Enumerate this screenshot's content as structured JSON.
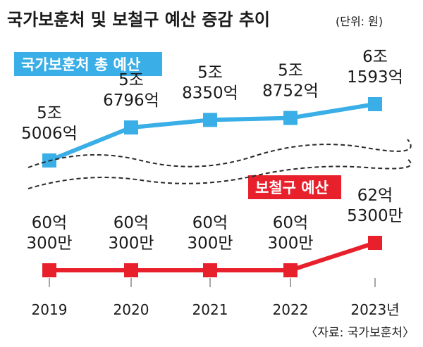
{
  "title": "국가보훈처 및 보철구 예산 증감 추이",
  "unit": "(단위: 원)",
  "source": "〈자료: 국가보훈처〉",
  "chart_data": {
    "type": "line",
    "categories": [
      "2019",
      "2020",
      "2021",
      "2022",
      "2023년"
    ],
    "series": [
      {
        "name": "국가보훈처 총 예산",
        "color": "#3aaee6",
        "values": [
          50006,
          56796,
          58350,
          58752,
          61593
        ],
        "labels": [
          [
            "5조",
            "5006억"
          ],
          [
            "5조",
            "6796억"
          ],
          [
            "5조",
            "8350억"
          ],
          [
            "5조",
            "8752억"
          ],
          [
            "6조",
            "1593억"
          ]
        ]
      },
      {
        "name": "보철구 예산",
        "color": "#e8202c",
        "values": [
          60.03,
          60.03,
          60.03,
          60.03,
          62.53
        ],
        "labels": [
          [
            "60억",
            "300만"
          ],
          [
            "60억",
            "300만"
          ],
          [
            "60억",
            "300만"
          ],
          [
            "60억",
            "300만"
          ],
          [
            "62억",
            "5300만"
          ]
        ]
      }
    ],
    "axis_break": true
  }
}
